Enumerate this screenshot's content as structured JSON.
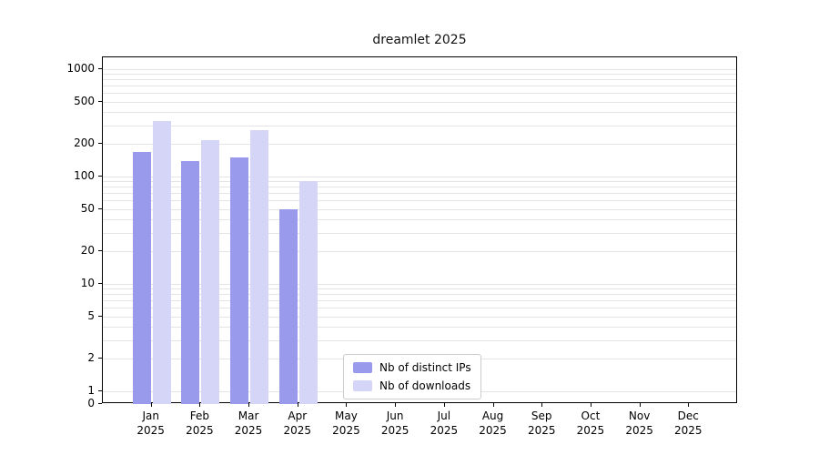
{
  "chart_data": {
    "type": "bar",
    "title": "dreamlet 2025",
    "yscale": "symlog",
    "grid": true,
    "legend_location": "lower center",
    "categories_month": [
      "Jan",
      "Feb",
      "Mar",
      "Apr",
      "May",
      "Jun",
      "Jul",
      "Aug",
      "Sep",
      "Oct",
      "Nov",
      "Dec"
    ],
    "categories_year": "2025",
    "series": [
      {
        "name": "Nb of distinct IPs",
        "color": "#9a9aed",
        "values": [
          170,
          140,
          150,
          50,
          0,
          0,
          0,
          0,
          0,
          0,
          0,
          0
        ]
      },
      {
        "name": "Nb of downloads",
        "color": "#d5d5f7",
        "values": [
          330,
          220,
          270,
          90,
          0,
          0,
          0,
          0,
          0,
          0,
          0,
          0
        ]
      }
    ],
    "ytick_labels": [
      1000,
      500,
      200,
      100,
      50,
      20,
      10,
      5,
      2,
      1,
      0
    ],
    "gridline_values": [
      1,
      2,
      3,
      4,
      5,
      6,
      7,
      8,
      9,
      10,
      20,
      30,
      40,
      50,
      60,
      70,
      80,
      90,
      100,
      200,
      300,
      400,
      500,
      600,
      700,
      800,
      900,
      1000
    ],
    "ylim": [
      0,
      1300
    ]
  }
}
